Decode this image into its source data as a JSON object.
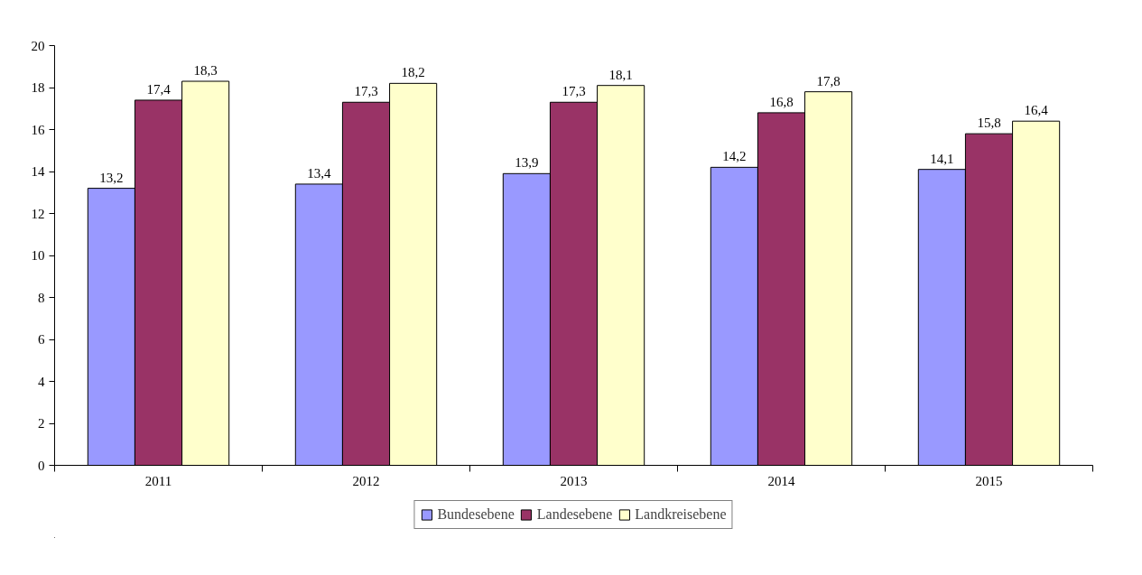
{
  "chart_data": {
    "type": "bar",
    "categories": [
      "2011",
      "2012",
      "2013",
      "2014",
      "2015"
    ],
    "series": [
      {
        "name": "Bundesebene",
        "color": "#9999ff",
        "values": [
          13.2,
          13.4,
          13.9,
          14.2,
          14.1
        ],
        "value_labels": [
          "13,2",
          "13,4",
          "13,9",
          "14,2",
          "14,1"
        ]
      },
      {
        "name": "Landesebene",
        "color": "#993366",
        "values": [
          17.4,
          17.3,
          17.3,
          16.8,
          15.8
        ],
        "value_labels": [
          "17,4",
          "17,3",
          "17,3",
          "16,8",
          "15,8"
        ]
      },
      {
        "name": "Landkreisebene",
        "color": "#ffffcc",
        "values": [
          18.3,
          18.2,
          18.1,
          17.8,
          16.4
        ],
        "value_labels": [
          "18,3",
          "18,2",
          "18,1",
          "17,8",
          "16,4"
        ]
      }
    ],
    "ylim": [
      0,
      20
    ],
    "yticks": [
      0,
      2,
      4,
      6,
      8,
      10,
      12,
      14,
      16,
      18,
      20
    ],
    "grid": false,
    "legend": "bottom"
  }
}
